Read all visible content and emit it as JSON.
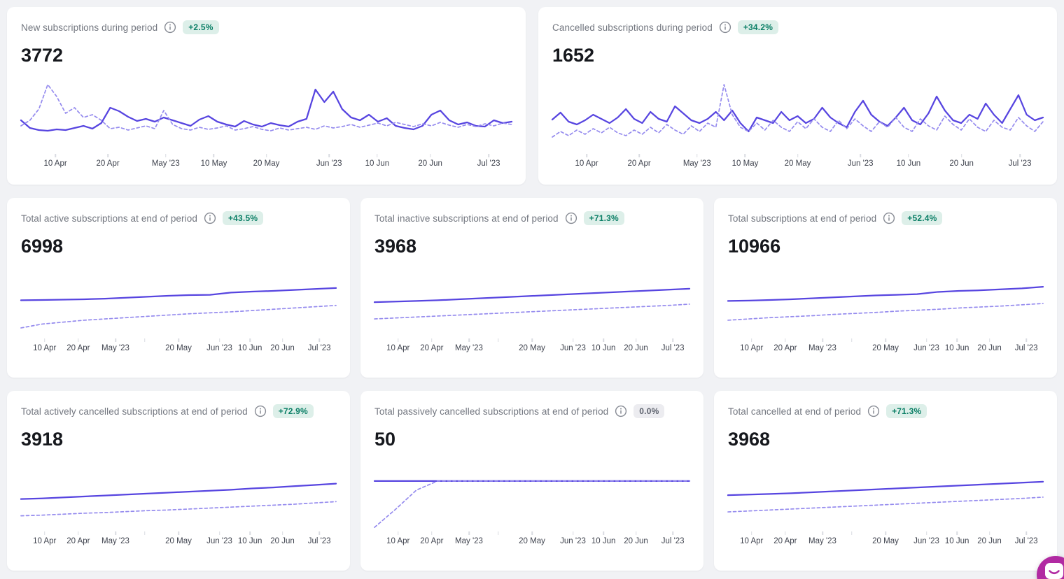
{
  "page": {
    "background": "#f1f2f5"
  },
  "colors": {
    "solid_line": "#5745e0",
    "dashed_line": "#958bee",
    "badge_positive_bg": "#ddefe9",
    "badge_positive_text": "#0b7f66",
    "badge_neutral_bg": "#ececf0",
    "badge_neutral_text": "#5c616c",
    "title_text": "#72767f",
    "value_text": "#16181d",
    "axis_text": "#3f434e",
    "tick": "#d9dbe1",
    "chat_button": "#b12aa2"
  },
  "axis_large": [
    {
      "x": 7,
      "label": "10 Apr"
    },
    {
      "x": 17.7,
      "label": "20 Apr"
    },
    {
      "x": 29.5,
      "label": "May '23"
    },
    {
      "x": 39.3,
      "label": "10 May"
    },
    {
      "x": 50,
      "label": "20 May"
    },
    {
      "x": 62.8,
      "label": "Jun '23"
    },
    {
      "x": 72.6,
      "label": "10 Jun"
    },
    {
      "x": 83.4,
      "label": "20 Jun"
    },
    {
      "x": 95.3,
      "label": "Jul '23"
    }
  ],
  "axis_small": [
    {
      "x": 7.5,
      "label": "10 Apr"
    },
    {
      "x": 18.2,
      "label": "20 Apr"
    },
    {
      "x": 30,
      "label": "May '23"
    },
    {
      "x": 39.3,
      "label": ""
    },
    {
      "x": 50,
      "label": "20 May"
    },
    {
      "x": 63,
      "label": "Jun '23"
    },
    {
      "x": 72.7,
      "label": "10 Jun"
    },
    {
      "x": 83,
      "label": "20 Jun"
    },
    {
      "x": 94.7,
      "label": "Jul '23"
    }
  ],
  "cards": [
    {
      "id": "new-subscriptions",
      "size": "large",
      "title": "New subscriptions during period",
      "badge": {
        "text": "+2.5%",
        "style": "positive"
      },
      "value": "3772",
      "chart_data": {
        "type": "line",
        "ylim": [
          0,
          100
        ],
        "x_tick_labels": [
          "10 Apr",
          "20 Apr",
          "May '23",
          "10 May",
          "20 May",
          "Jun '23",
          "10 Jun",
          "20 Jun",
          "Jul '23"
        ],
        "series": [
          {
            "name": "solid-line",
            "style": "solid",
            "values": [
              44,
              33,
              30,
              29,
              31,
              30,
              33,
              36,
              32,
              40,
              62,
              57,
              49,
              43,
              46,
              42,
              48,
              44,
              40,
              36,
              45,
              50,
              42,
              38,
              35,
              43,
              38,
              35,
              40,
              37,
              35,
              42,
              46,
              88,
              70,
              85,
              60,
              48,
              44,
              52,
              42,
              47,
              36,
              33,
              31,
              36,
              52,
              58,
              44,
              38,
              41,
              36,
              35,
              44,
              40,
              42
            ]
          },
          {
            "name": "dashed-line",
            "style": "dashed",
            "values": [
              36,
              44,
              60,
              95,
              78,
              54,
              62,
              48,
              52,
              44,
              32,
              34,
              30,
              33,
              36,
              32,
              58,
              38,
              32,
              30,
              34,
              31,
              33,
              36,
              30,
              32,
              35,
              31,
              29,
              33,
              30,
              32,
              34,
              31,
              36,
              33,
              35,
              38,
              34,
              37,
              40,
              36,
              41,
              38,
              35,
              39,
              36,
              41,
              37,
              34,
              38,
              35,
              39,
              36,
              40,
              38
            ]
          }
        ]
      }
    },
    {
      "id": "cancelled-subscriptions",
      "size": "large",
      "title": "Cancelled subscriptions during period",
      "badge": {
        "text": "+34.2%",
        "style": "positive"
      },
      "value": "1652",
      "chart_data": {
        "type": "line",
        "ylim": [
          0,
          100
        ],
        "x_tick_labels": [
          "10 Apr",
          "20 Apr",
          "May '23",
          "10 May",
          "20 May",
          "Jun '23",
          "10 Jun",
          "20 Jun",
          "Jul '23"
        ],
        "series": [
          {
            "name": "solid-line",
            "style": "solid",
            "values": [
              45,
              55,
              42,
              38,
              44,
              52,
              46,
              40,
              48,
              60,
              46,
              40,
              56,
              46,
              42,
              64,
              54,
              44,
              40,
              46,
              56,
              44,
              58,
              40,
              28,
              48,
              44,
              40,
              56,
              44,
              50,
              40,
              46,
              62,
              48,
              40,
              34,
              56,
              72,
              52,
              42,
              36,
              48,
              62,
              44,
              38,
              54,
              78,
              58,
              44,
              40,
              52,
              46,
              68,
              52,
              40,
              60,
              80,
              52,
              44,
              48
            ]
          },
          {
            "name": "dashed-line",
            "style": "dashed",
            "values": [
              20,
              28,
              22,
              30,
              24,
              32,
              26,
              34,
              26,
              22,
              30,
              24,
              34,
              26,
              38,
              30,
              24,
              36,
              28,
              40,
              34,
              95,
              52,
              34,
              28,
              40,
              30,
              44,
              34,
              28,
              42,
              32,
              46,
              34,
              28,
              44,
              32,
              46,
              36,
              28,
              42,
              34,
              48,
              34,
              28,
              46,
              36,
              30,
              50,
              38,
              30,
              46,
              34,
              28,
              44,
              34,
              30,
              48,
              36,
              28,
              42
            ]
          }
        ]
      }
    },
    {
      "id": "total-active",
      "size": "small",
      "title": "Total active subscriptions at end of period",
      "badge": {
        "text": "+43.5%",
        "style": "positive"
      },
      "value": "6998",
      "chart_data": {
        "type": "line",
        "ylim": [
          0,
          100
        ],
        "x_tick_labels": [
          "10 Apr",
          "20 Apr",
          "May '23",
          "20 May",
          "Jun '23",
          "10 Jun",
          "20 Jun",
          "Jul '23"
        ],
        "series": [
          {
            "name": "solid-line",
            "style": "solid",
            "values": [
              55,
              55.5,
              56,
              56.5,
              57.5,
              59,
              60.5,
              62,
              63,
              63.5,
              67,
              68.5,
              69.5,
              71,
              72.5,
              74
            ]
          },
          {
            "name": "dashed-line",
            "style": "dashed",
            "values": [
              12,
              18,
              21,
              24,
              26,
              28,
              30,
              32,
              34,
              35.5,
              37,
              39,
              41,
              43,
              45,
              47
            ]
          }
        ]
      }
    },
    {
      "id": "total-inactive",
      "size": "small",
      "title": "Total inactive subscriptions at end of period",
      "badge": {
        "text": "+71.3%",
        "style": "positive"
      },
      "value": "3968",
      "chart_data": {
        "type": "line",
        "ylim": [
          0,
          100
        ],
        "x_tick_labels": [
          "10 Apr",
          "20 Apr",
          "May '23",
          "20 May",
          "Jun '23",
          "10 Jun",
          "20 Jun",
          "Jul '23"
        ],
        "series": [
          {
            "name": "solid-line",
            "style": "solid",
            "values": [
              52,
              53,
              54,
              55,
              56.5,
              58,
              59.5,
              61,
              62.5,
              64,
              65.5,
              67,
              68.5,
              70,
              71.5,
              73
            ]
          },
          {
            "name": "dashed-line",
            "style": "dashed",
            "values": [
              26,
              27.5,
              29,
              30.5,
              32,
              33.5,
              35,
              36.5,
              38,
              39.5,
              41,
              42.5,
              44,
              45.5,
              47,
              49
            ]
          }
        ]
      }
    },
    {
      "id": "total-subscriptions",
      "size": "small",
      "title": "Total subscriptions at end of period",
      "badge": {
        "text": "+52.4%",
        "style": "positive"
      },
      "value": "10966",
      "chart_data": {
        "type": "line",
        "ylim": [
          0,
          100
        ],
        "x_tick_labels": [
          "10 Apr",
          "20 Apr",
          "May '23",
          "20 May",
          "Jun '23",
          "10 Jun",
          "20 Jun",
          "Jul '23"
        ],
        "series": [
          {
            "name": "solid-line",
            "style": "solid",
            "values": [
              54,
              54.5,
              55.5,
              56.5,
              58,
              59.5,
              61,
              62.5,
              63.5,
              64.5,
              68,
              69.5,
              70.5,
              72,
              73.5,
              76
            ]
          },
          {
            "name": "dashed-line",
            "style": "dashed",
            "values": [
              24,
              26,
              28,
              29.5,
              31,
              33,
              34.5,
              36,
              38,
              39.5,
              41,
              43,
              44.5,
              46,
              48,
              50
            ]
          }
        ]
      }
    },
    {
      "id": "total-actively-cancelled",
      "size": "small",
      "title": "Total actively cancelled subscriptions at end of period",
      "badge": {
        "text": "+72.9%",
        "style": "positive"
      },
      "value": "3918",
      "chart_data": {
        "type": "line",
        "ylim": [
          0,
          100
        ],
        "x_tick_labels": [
          "10 Apr",
          "20 Apr",
          "May '23",
          "20 May",
          "Jun '23",
          "10 Jun",
          "20 Jun",
          "Jul '23"
        ],
        "series": [
          {
            "name": "solid-line",
            "style": "solid",
            "values": [
              46,
              47,
              48.5,
              50,
              51.5,
              53,
              54.5,
              56,
              57.5,
              59,
              60.5,
              62.5,
              64,
              66,
              68,
              70
            ]
          },
          {
            "name": "dashed-line",
            "style": "dashed",
            "values": [
              20,
              21,
              22.5,
              24,
              25,
              26.5,
              28,
              29,
              30.5,
              32,
              33.5,
              35,
              36.5,
              38,
              40,
              42
            ]
          }
        ]
      }
    },
    {
      "id": "total-passively-cancelled",
      "size": "small",
      "title": "Total passively cancelled subscriptions at end of period",
      "badge": {
        "text": "0.0%",
        "style": "neutral"
      },
      "value": "50",
      "chart_data": {
        "type": "line",
        "ylim": [
          0,
          100
        ],
        "x_tick_labels": [
          "10 Apr",
          "20 Apr",
          "May '23",
          "20 May",
          "Jun '23",
          "10 Jun",
          "20 Jun",
          "Jul '23"
        ],
        "series": [
          {
            "name": "solid-line",
            "style": "solid",
            "values": [
              74,
              74,
              74,
              74,
              74,
              74,
              74,
              74,
              74,
              74,
              74,
              74,
              74,
              74,
              74,
              74
            ]
          },
          {
            "name": "dashed-line",
            "style": "dashed",
            "values": [
              2,
              30,
              60,
              74,
              74,
              74,
              74,
              74,
              74,
              74,
              74,
              74,
              74,
              74,
              74,
              74
            ]
          }
        ]
      }
    },
    {
      "id": "total-cancelled",
      "size": "small",
      "title": "Total cancelled at end of period",
      "badge": {
        "text": "+71.3%",
        "style": "positive"
      },
      "value": "3968",
      "chart_data": {
        "type": "line",
        "ylim": [
          0,
          100
        ],
        "x_tick_labels": [
          "10 Apr",
          "20 Apr",
          "May '23",
          "20 May",
          "Jun '23",
          "10 Jun",
          "20 Jun",
          "Jul '23"
        ],
        "series": [
          {
            "name": "solid-line",
            "style": "solid",
            "values": [
              52,
              53,
              54,
              55,
              56.5,
              58,
              59.5,
              61,
              62.5,
              64,
              65.5,
              67,
              68.5,
              70,
              71.5,
              73
            ]
          },
          {
            "name": "dashed-line",
            "style": "dashed",
            "values": [
              26,
              27.5,
              29,
              30.5,
              32,
              33.5,
              35,
              36.5,
              38,
              39.5,
              41,
              42.5,
              44,
              45.5,
              47,
              49
            ]
          }
        ]
      }
    }
  ],
  "chat": {
    "label": "chat launcher"
  }
}
